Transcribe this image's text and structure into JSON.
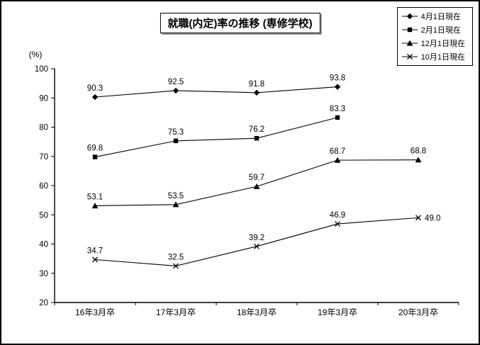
{
  "chart_data": {
    "type": "line",
    "title": "就職(内定)率の推移 (専修学校)",
    "ylabel": "(%)",
    "ylim": [
      20,
      100
    ],
    "ytick_step": 10,
    "grid": false,
    "legend_position": "top-right",
    "line_color": "#000000",
    "background_color": "#ffffff",
    "categories": [
      "16年3月卒",
      "17年3月卒",
      "18年3月卒",
      "19年3月卒",
      "20年3月卒"
    ],
    "series": [
      {
        "name": "4月1日現在",
        "marker": "diamond",
        "values": [
          90.3,
          92.5,
          91.8,
          93.8,
          null
        ]
      },
      {
        "name": "2月1日現在",
        "marker": "square",
        "values": [
          69.8,
          75.3,
          76.2,
          83.3,
          null
        ]
      },
      {
        "name": "12月1日現在",
        "marker": "triangle",
        "values": [
          53.1,
          53.5,
          59.7,
          68.7,
          68.8
        ]
      },
      {
        "name": "10月1日現在",
        "marker": "x",
        "values": [
          34.7,
          32.5,
          39.2,
          46.9,
          49.0
        ],
        "last_label": "right"
      }
    ]
  }
}
